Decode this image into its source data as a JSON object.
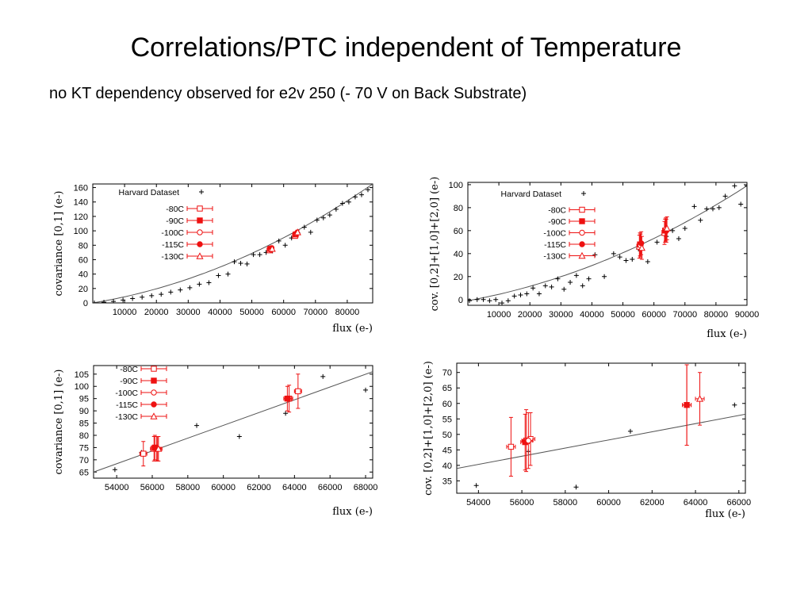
{
  "slide": {
    "title": "Correlations/PTC independent of Temperature",
    "subtitle": "no KT  dependency observed for e2v 250 (- 70 V on Back Substrate)"
  },
  "colors": {
    "harvard": "#000000",
    "temp_series": "#ee1111",
    "fit": "#555555"
  },
  "chart_data": [
    {
      "type": "scatter",
      "id": "top-left",
      "xlabel": "flux (e-)",
      "ylabel": "covariance [0,1] (e-)",
      "xlim": [
        0,
        88000
      ],
      "ylim": [
        0,
        165
      ],
      "xticks": [
        10000,
        20000,
        30000,
        40000,
        50000,
        60000,
        70000,
        80000
      ],
      "yticks": [
        0,
        20,
        40,
        60,
        80,
        100,
        120,
        140,
        160
      ],
      "grid": false,
      "legend_position": "top-left",
      "fit": {
        "type": "quadratic",
        "points": [
          [
            0,
            0
          ],
          [
            44000,
            57
          ],
          [
            88000,
            165
          ]
        ]
      },
      "harvard": {
        "name": "Harvard Dataset",
        "points": [
          [
            500,
            0
          ],
          [
            3500,
            1
          ],
          [
            6500,
            2
          ],
          [
            9500,
            4
          ],
          [
            12500,
            6
          ],
          [
            15500,
            8
          ],
          [
            18500,
            10
          ],
          [
            21500,
            12
          ],
          [
            24500,
            15
          ],
          [
            27500,
            18
          ],
          [
            30500,
            21
          ],
          [
            33500,
            26
          ],
          [
            36500,
            28
          ],
          [
            39500,
            38
          ],
          [
            42500,
            40
          ],
          [
            44500,
            57
          ],
          [
            46500,
            55
          ],
          [
            48500,
            54
          ],
          [
            50500,
            67
          ],
          [
            52500,
            67
          ],
          [
            54500,
            70
          ],
          [
            56500,
            72
          ],
          [
            58500,
            86
          ],
          [
            60500,
            80
          ],
          [
            62500,
            90
          ],
          [
            64500,
            97
          ],
          [
            66500,
            105
          ],
          [
            68500,
            98
          ],
          [
            70500,
            115
          ],
          [
            72500,
            118
          ],
          [
            74500,
            122
          ],
          [
            76500,
            130
          ],
          [
            78500,
            138
          ],
          [
            80500,
            140
          ],
          [
            82500,
            147
          ],
          [
            84500,
            150
          ],
          [
            86500,
            157
          ]
        ]
      },
      "series": [
        {
          "name": "-80C",
          "marker": "open-square",
          "points": [
            [
              55600,
              73,
              3
            ],
            [
              63600,
              93,
              3
            ]
          ]
        },
        {
          "name": "-90C",
          "marker": "filled-square",
          "points": [
            [
              55800,
              75,
              3
            ],
            [
              63800,
              95,
              3
            ]
          ]
        },
        {
          "name": "-100C",
          "marker": "open-circle",
          "points": [
            [
              56000,
              74,
              3
            ],
            [
              64000,
              96,
              3
            ]
          ]
        },
        {
          "name": "-115C",
          "marker": "filled-circle",
          "points": [
            [
              56200,
              76,
              3
            ],
            [
              64200,
              97,
              3
            ]
          ]
        },
        {
          "name": "-130C",
          "marker": "triangle",
          "points": [
            [
              56400,
              75,
              3
            ],
            [
              64400,
              98,
              3
            ]
          ]
        }
      ]
    },
    {
      "type": "scatter",
      "id": "top-right",
      "xlabel": "flux (e-)",
      "ylabel": "cov. [0,2]+[1,0]+[2,0]  (e-)",
      "xlim": [
        0,
        90000
      ],
      "ylim": [
        -5,
        102
      ],
      "xticks": [
        10000,
        20000,
        30000,
        40000,
        50000,
        60000,
        70000,
        80000,
        90000
      ],
      "yticks": [
        0,
        20,
        40,
        60,
        80,
        100
      ],
      "grid": false,
      "legend_position": "top-left",
      "fit": {
        "type": "quadratic",
        "points": [
          [
            0,
            -1
          ],
          [
            45000,
            35
          ],
          [
            90000,
            99
          ]
        ]
      },
      "harvard": {
        "name": "Harvard Dataset",
        "points": [
          [
            500,
            -1
          ],
          [
            3000,
            0
          ],
          [
            5000,
            0
          ],
          [
            7000,
            -1
          ],
          [
            9000,
            0
          ],
          [
            11000,
            -3
          ],
          [
            13000,
            -1
          ],
          [
            15000,
            3
          ],
          [
            17000,
            4
          ],
          [
            19000,
            5
          ],
          [
            21000,
            10
          ],
          [
            23000,
            5
          ],
          [
            25000,
            12
          ],
          [
            27000,
            11
          ],
          [
            29000,
            18
          ],
          [
            31000,
            9
          ],
          [
            33000,
            15
          ],
          [
            35000,
            21
          ],
          [
            37000,
            12
          ],
          [
            39000,
            18
          ],
          [
            41000,
            39
          ],
          [
            44000,
            20
          ],
          [
            47000,
            40
          ],
          [
            49000,
            37
          ],
          [
            51000,
            34
          ],
          [
            53000,
            35
          ],
          [
            55000,
            44
          ],
          [
            58000,
            33
          ],
          [
            61000,
            50
          ],
          [
            64000,
            55
          ],
          [
            66000,
            60
          ],
          [
            68000,
            53
          ],
          [
            70000,
            62
          ],
          [
            73000,
            81
          ],
          [
            75000,
            69
          ],
          [
            77000,
            79
          ],
          [
            79000,
            79
          ],
          [
            81000,
            80
          ],
          [
            83000,
            90
          ],
          [
            86000,
            99
          ],
          [
            88000,
            83
          ],
          [
            90000,
            99
          ]
        ]
      },
      "series": [
        {
          "name": "-80C",
          "marker": "open-square",
          "points": [
            [
              55300,
              46,
              10
            ],
            [
              63400,
              58,
              10
            ]
          ]
        },
        {
          "name": "-90C",
          "marker": "filled-square",
          "points": [
            [
              55500,
              48,
              10
            ],
            [
              63600,
              60,
              10
            ]
          ]
        },
        {
          "name": "-100C",
          "marker": "open-circle",
          "points": [
            [
              55700,
              47,
              10
            ],
            [
              63800,
              61,
              10
            ]
          ]
        },
        {
          "name": "-115C",
          "marker": "filled-circle",
          "points": [
            [
              55900,
              49,
              10
            ],
            [
              64000,
              60,
              10
            ]
          ]
        },
        {
          "name": "-130C",
          "marker": "triangle",
          "points": [
            [
              56100,
              45,
              10
            ],
            [
              64200,
              62,
              10
            ]
          ]
        }
      ]
    },
    {
      "type": "scatter",
      "id": "bottom-left",
      "xlabel": "flux (e-)",
      "ylabel": "covariance [0,1] (e-)",
      "xlim": [
        52700,
        68400
      ],
      "ylim": [
        62.5,
        108.5
      ],
      "xticks": [
        54000,
        56000,
        58000,
        60000,
        62000,
        64000,
        66000,
        68000
      ],
      "yticks": [
        65,
        70,
        75,
        80,
        85,
        90,
        95,
        100,
        105
      ],
      "grid": false,
      "legend_position": "top-left",
      "fit": {
        "type": "linear",
        "points": [
          [
            52700,
            65
          ],
          [
            68400,
            106
          ]
        ]
      },
      "harvard": {
        "name": "",
        "points": [
          [
            53900,
            66
          ],
          [
            55400,
            73
          ],
          [
            58500,
            84
          ],
          [
            60900,
            79.5
          ],
          [
            63500,
            89
          ],
          [
            65600,
            104
          ],
          [
            68000,
            98.5
          ]
        ]
      },
      "series": [
        {
          "name": "-80C",
          "marker": "open-square",
          "points": [
            [
              55500,
              72.5,
              5
            ],
            [
              56100,
              74.5,
              5
            ],
            [
              63700,
              95,
              5.5
            ],
            [
              64200,
              98,
              7
            ]
          ],
          "xerr": 200
        },
        {
          "name": "-90C",
          "marker": "filled-square",
          "points": [
            [
              56150,
              75,
              5
            ],
            [
              63600,
              95,
              5
            ]
          ],
          "xerr": 200
        },
        {
          "name": "-100C",
          "marker": "open-circle",
          "points": [
            [
              56300,
              74.5,
              5
            ]
          ],
          "xerr": 200
        },
        {
          "name": "-115C",
          "marker": "filled-circle",
          "points": [
            [
              56250,
              74.5,
              5
            ]
          ],
          "xerr": 200
        },
        {
          "name": "-130C",
          "marker": "triangle",
          "points": [
            [
              56350,
              74.5,
              5
            ]
          ],
          "xerr": 200
        }
      ]
    },
    {
      "type": "scatter",
      "id": "bottom-right",
      "xlabel": "flux (e-)",
      "ylabel": "cov. [0,2]+[1,0]+[2,0]  (e-)",
      "xlim": [
        53000,
        66300
      ],
      "ylim": [
        31,
        73
      ],
      "xticks": [
        54000,
        56000,
        58000,
        60000,
        62000,
        64000,
        66000
      ],
      "yticks": [
        35,
        40,
        45,
        50,
        55,
        60,
        65,
        70
      ],
      "grid": false,
      "legend_position": "none",
      "fit": {
        "type": "linear",
        "points": [
          [
            53000,
            39
          ],
          [
            66300,
            56.5
          ]
        ]
      },
      "harvard": {
        "name": "",
        "points": [
          [
            53900,
            33.5
          ],
          [
            56300,
            44.5
          ],
          [
            58500,
            33
          ],
          [
            61000,
            51
          ],
          [
            63500,
            59.5
          ],
          [
            65800,
            59.5
          ]
        ]
      },
      "series": [
        {
          "name": "-80C",
          "marker": "open-square",
          "points": [
            [
              55500,
              46,
              9.5
            ],
            [
              56200,
              48,
              10
            ],
            [
              56400,
              48.5,
              8.5
            ]
          ],
          "xerr": 200
        },
        {
          "name": "-90C",
          "marker": "filled-square",
          "points": [
            [
              56150,
              47.5,
              9
            ],
            [
              63600,
              59.5,
              13
            ]
          ],
          "xerr": 200
        },
        {
          "name": "-100C",
          "marker": "open-circle",
          "points": [
            [
              56300,
              48,
              9
            ]
          ],
          "xerr": 200
        },
        {
          "name": "-115C",
          "marker": "filled-circle",
          "points": [
            [
              63600,
              59.5,
              13
            ]
          ],
          "xerr": 200
        },
        {
          "name": "-130C",
          "marker": "triangle",
          "points": [
            [
              64200,
              61.5,
              8.5
            ]
          ],
          "xerr": 200
        }
      ]
    }
  ]
}
